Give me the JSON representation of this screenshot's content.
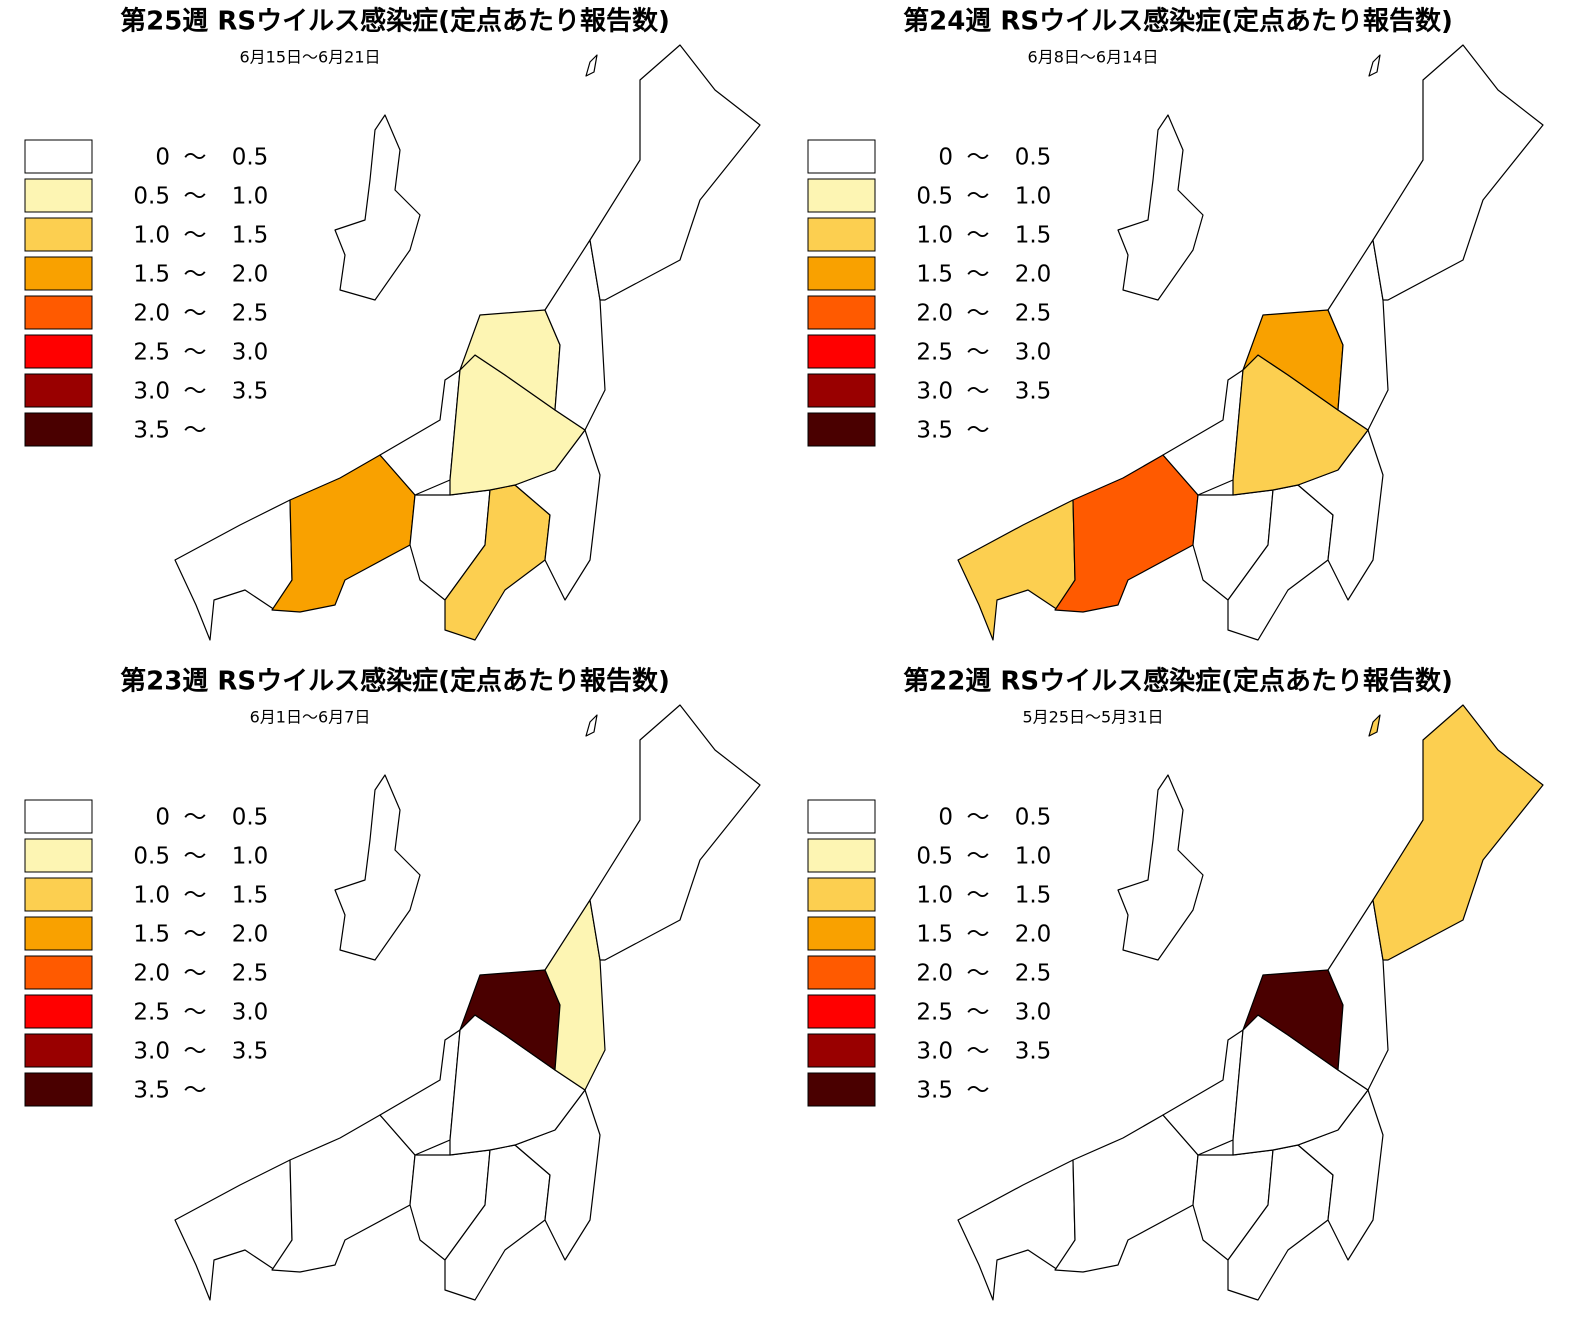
{
  "legend": {
    "separator": "〜",
    "classes": [
      {
        "from": "0",
        "to": "0.5",
        "color": "#ffffff"
      },
      {
        "from": "0.5",
        "to": "1.0",
        "color": "#fdf5b3"
      },
      {
        "from": "1.0",
        "to": "1.5",
        "color": "#fccf50"
      },
      {
        "from": "1.5",
        "to": "2.0",
        "color": "#f9a100"
      },
      {
        "from": "2.0",
        "to": "2.5",
        "color": "#ff5a00"
      },
      {
        "from": "2.5",
        "to": "3.0",
        "color": "#ff0000"
      },
      {
        "from": "3.0",
        "to": "3.5",
        "color": "#990000"
      },
      {
        "from": "3.5",
        "color": "#4a0000"
      }
    ]
  },
  "panels": [
    {
      "title": "第25週 RSウイルス感染症(定点あたり報告数)",
      "period": "6月15日〜6月21日",
      "region_colors": [
        "#ffffff",
        "#f9a100",
        "#ffffff",
        "#fccf50",
        "#ffffff",
        "#ffffff",
        "#fdf5b3",
        "#fdf5b3",
        "#ffffff",
        "#ffffff",
        "#ffffff",
        "#ffffff"
      ]
    },
    {
      "title": "第24週 RSウイルス感染症(定点あたり報告数)",
      "period": "6月8日〜6月14日",
      "region_colors": [
        "#fccf50",
        "#ff5a00",
        "#ffffff",
        "#ffffff",
        "#ffffff",
        "#ffffff",
        "#fccf50",
        "#f9a100",
        "#ffffff",
        "#ffffff",
        "#ffffff",
        "#ffffff"
      ]
    },
    {
      "title": "第23週 RSウイルス感染症(定点あたり報告数)",
      "period": "6月1日〜6月7日",
      "region_colors": [
        "#ffffff",
        "#ffffff",
        "#ffffff",
        "#ffffff",
        "#ffffff",
        "#ffffff",
        "#ffffff",
        "#4a0000",
        "#fdf5b3",
        "#ffffff",
        "#ffffff",
        "#ffffff"
      ]
    },
    {
      "title": "第22週 RSウイルス感染症(定点あたり報告数)",
      "period": "5月25日〜5月31日",
      "region_colors": [
        "#ffffff",
        "#ffffff",
        "#ffffff",
        "#ffffff",
        "#ffffff",
        "#ffffff",
        "#ffffff",
        "#4a0000",
        "#ffffff",
        "#fccf50",
        "#ffffff",
        "#fccf50"
      ]
    }
  ]
}
